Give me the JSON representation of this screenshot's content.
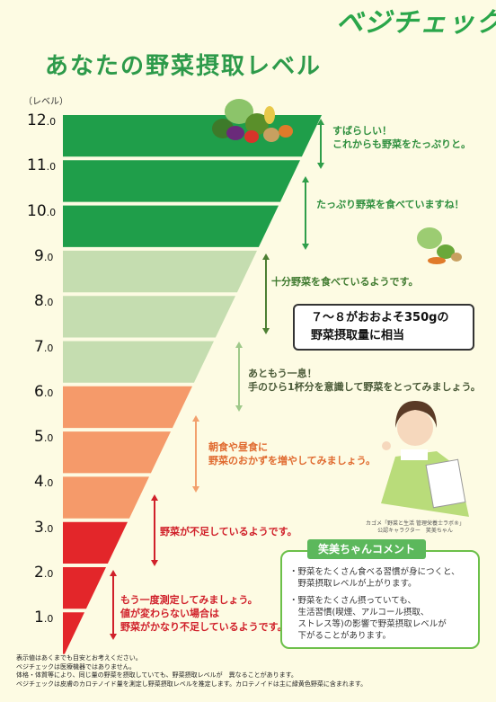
{
  "brand": "ベジチェック",
  "title": "あなたの野菜摂取レベル",
  "level_unit": "（レベル）",
  "levels": [
    {
      "int": "12",
      "dec": ".0",
      "color": "#1f9e4a"
    },
    {
      "int": "11",
      "dec": ".0",
      "color": "#1f9e4a"
    },
    {
      "int": "10",
      "dec": ".0",
      "color": "#1f9e4a"
    },
    {
      "int": "9",
      "dec": ".0",
      "color": "#c5ddb0"
    },
    {
      "int": "8",
      "dec": ".0",
      "color": "#c5ddb0"
    },
    {
      "int": "7",
      "dec": ".0",
      "color": "#c5ddb0"
    },
    {
      "int": "6",
      "dec": ".0",
      "color": "#f59a6a"
    },
    {
      "int": "5",
      "dec": ".0",
      "color": "#f59a6a"
    },
    {
      "int": "4",
      "dec": ".0",
      "color": "#f59a6a"
    },
    {
      "int": "3",
      "dec": ".0",
      "color": "#e3262a"
    },
    {
      "int": "2",
      "dec": ".0",
      "color": "#e3262a"
    },
    {
      "int": "1",
      "dec": ".0",
      "color": "#e3262a"
    }
  ],
  "messages": {
    "m12_1": "すばらしい！",
    "m12_2": "これからも野菜をたっぷりと。",
    "m10": "たっぷり野菜を食べていますね！",
    "m8": "十分野菜を食べているようです。",
    "m6_1": "あともう一息！",
    "m6_2": "手のひら1杯分を意識して野菜をとってみましょう。",
    "m45_1": "朝食や昼食に",
    "m45_2": "野菜のおかずを増やしてみましょう。",
    "m3": "野菜が不足しているようです。",
    "m1_1": "もう一度測定してみましょう。",
    "m1_2": "値が変わらない場合は",
    "m1_3": "野菜がかなり不足しているようです。"
  },
  "callout": {
    "line1": "７～８がおおよそ350gの",
    "line2": "野菜摂取量に相当"
  },
  "character_caption": {
    "line1": "カゴメ「野菜と生活 管理栄養士ラボ®」",
    "line2": "公認キャラクター　笑美ちゃん"
  },
  "comment": {
    "header": "笑美ちゃんコメント",
    "p1": "・野菜をたくさん食べる習慣が身につくと、\n　野菜摂取レベルが上がります。",
    "p2": "・野菜をたくさん摂っていても、\n　生活習慣(喫煙、アルコール摂取、\n　ストレス等)の影響で野菜摂取レベルが\n　下がることがあります。"
  },
  "footnotes": [
    "表示値はあくまでも目安とお考えください。",
    "ベジチェックは医療機器ではありません。",
    "体格・体質等により、同じ量の野菜を摂取していても、野菜摂取レベルが　異なることがあります。",
    "ベジチェックは皮膚のカロテノイド量を測定し野菜摂取レベルを推定します。カロテノイドは主に緑黄色野菜に含まれます。"
  ]
}
